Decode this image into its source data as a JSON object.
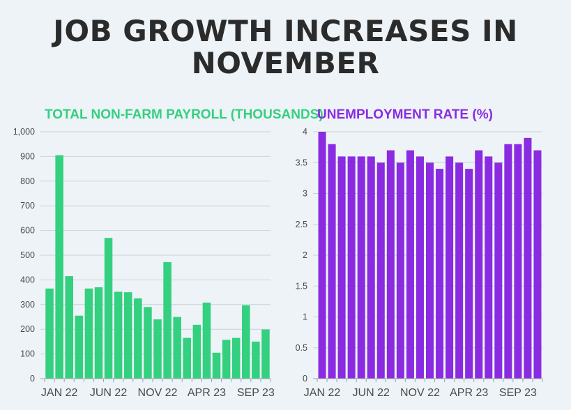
{
  "title": "JOB GROWTH INCREASES IN NOVEMBER",
  "chart_data": [
    {
      "type": "bar",
      "title": "TOTAL NON-FARM PAYROLL (THOUSANDS)",
      "color": "#33d07f",
      "ylim": [
        0,
        1000
      ],
      "yticks": [
        0,
        100,
        200,
        300,
        400,
        500,
        600,
        700,
        800,
        900,
        1000
      ],
      "ytick_labels": [
        "0",
        "100",
        "200",
        "300",
        "400",
        "500",
        "600",
        "700",
        "800",
        "900",
        "1,000"
      ],
      "x_labels": [
        {
          "label": "JAN 22",
          "index": 1
        },
        {
          "label": "JUN 22",
          "index": 6
        },
        {
          "label": "NOV 22",
          "index": 11
        },
        {
          "label": "APR 23",
          "index": 16
        },
        {
          "label": "SEP 23",
          "index": 21
        }
      ],
      "values": [
        365,
        905,
        415,
        255,
        365,
        370,
        570,
        352,
        350,
        325,
        290,
        240,
        472,
        250,
        165,
        218,
        308,
        105,
        157,
        165,
        297,
        150,
        199
      ]
    },
    {
      "type": "bar",
      "title": "UNEMPLOYMENT RATE (%)",
      "color": "#8a2be2",
      "ylim": [
        0,
        4
      ],
      "yticks": [
        0,
        0.5,
        1,
        1.5,
        2,
        2.5,
        3,
        3.5,
        4
      ],
      "ytick_labels": [
        "0",
        "0.5",
        "1",
        "1.5",
        "2",
        "2.5",
        "3",
        "3.5",
        "4"
      ],
      "x_labels": [
        {
          "label": "JAN 22",
          "index": 0
        },
        {
          "label": "JUN 22",
          "index": 5
        },
        {
          "label": "NOV 22",
          "index": 10
        },
        {
          "label": "APR 23",
          "index": 15
        },
        {
          "label": "SEP 23",
          "index": 20
        }
      ],
      "values": [
        4.0,
        3.8,
        3.6,
        3.6,
        3.6,
        3.6,
        3.5,
        3.7,
        3.5,
        3.7,
        3.6,
        3.5,
        3.4,
        3.6,
        3.5,
        3.4,
        3.7,
        3.6,
        3.5,
        3.8,
        3.8,
        3.9,
        3.7
      ]
    }
  ]
}
